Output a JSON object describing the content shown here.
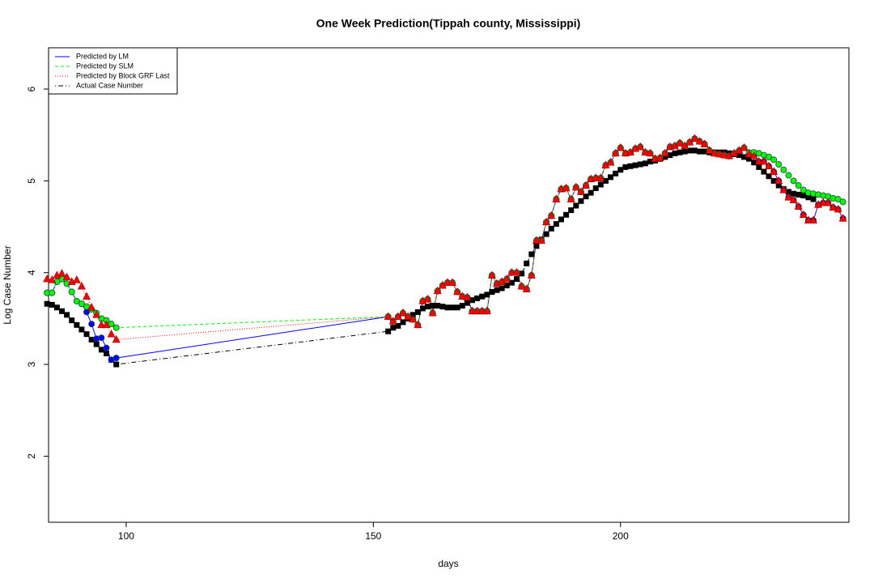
{
  "chart_data": {
    "type": "line",
    "title": "One Week Prediction(Tippah county, Mississippi)",
    "x_label": "days",
    "y_label": "Log Case Number",
    "xlim": [
      84.3,
      246.2
    ],
    "ylim": [
      1.28,
      6.45
    ],
    "xticks": [
      100,
      150,
      200
    ],
    "yticks": [
      2,
      3,
      4,
      5,
      6
    ],
    "legend": "topleft",
    "x": [
      84,
      85,
      86,
      87,
      88,
      89,
      90,
      91,
      92,
      93,
      94,
      95,
      96,
      97,
      98,
      153,
      154,
      155,
      156,
      157,
      158,
      159,
      160,
      161,
      162,
      163,
      164,
      165,
      166,
      167,
      168,
      169,
      170,
      171,
      172,
      173,
      174,
      175,
      176,
      177,
      178,
      179,
      180,
      181,
      182,
      183,
      184,
      185,
      186,
      187,
      188,
      189,
      190,
      191,
      192,
      193,
      194,
      195,
      196,
      197,
      198,
      199,
      200,
      201,
      202,
      203,
      204,
      205,
      206,
      207,
      208,
      209,
      210,
      211,
      212,
      213,
      214,
      215,
      216,
      217,
      218,
      219,
      220,
      221,
      222,
      223,
      224,
      225,
      226,
      227,
      228,
      229,
      230,
      231,
      232,
      233,
      234,
      235,
      236,
      237,
      238,
      239,
      240,
      241,
      242,
      243,
      244,
      245
    ],
    "series": [
      {
        "name": "Predicted by LM",
        "color": "#0000ff",
        "line_style": "solid",
        "marker": "circle",
        "values": [
          3.78,
          3.78,
          3.9,
          3.93,
          3.88,
          3.79,
          3.69,
          3.66,
          3.57,
          3.44,
          3.28,
          3.29,
          3.18,
          3.05,
          3.07,
          3.52,
          3.47,
          3.52,
          3.56,
          3.52,
          3.49,
          3.43,
          3.69,
          3.71,
          3.56,
          3.8,
          3.86,
          3.89,
          3.89,
          3.79,
          3.74,
          3.73,
          3.58,
          3.58,
          3.58,
          3.58,
          3.97,
          3.88,
          3.9,
          3.93,
          4.0,
          4.0,
          3.85,
          3.82,
          3.97,
          4.35,
          4.35,
          4.55,
          4.62,
          4.8,
          4.91,
          4.92,
          4.8,
          4.93,
          4.88,
          4.95,
          5.02,
          5.03,
          5.03,
          5.17,
          5.2,
          5.3,
          5.36,
          5.3,
          5.31,
          5.35,
          5.37,
          5.31,
          5.3,
          5.24,
          5.25,
          5.3,
          5.37,
          5.38,
          5.41,
          5.38,
          5.42,
          5.46,
          5.43,
          5.4,
          5.33,
          5.3,
          5.29,
          5.28,
          5.27,
          5.3,
          5.33,
          5.36,
          5.29,
          5.27,
          5.21,
          5.21,
          5.16,
          5.1,
          5.0,
          4.9,
          4.82,
          4.79,
          4.72,
          4.63,
          4.57,
          4.57,
          4.74,
          4.76,
          4.76,
          4.71,
          4.69,
          4.59
        ]
      },
      {
        "name": "Predicted by SLM",
        "color": "#00ff00",
        "line_style": "dashed",
        "marker": "circle",
        "values": [
          3.78,
          3.78,
          3.9,
          3.93,
          3.88,
          3.79,
          3.69,
          3.66,
          3.63,
          3.6,
          3.56,
          3.5,
          3.48,
          3.44,
          3.4,
          3.52,
          3.47,
          3.52,
          3.56,
          3.52,
          3.49,
          3.43,
          3.69,
          3.71,
          3.56,
          3.8,
          3.86,
          3.89,
          3.89,
          3.79,
          3.74,
          3.73,
          3.58,
          3.58,
          3.58,
          3.58,
          3.97,
          3.88,
          3.9,
          3.93,
          4.0,
          4.0,
          3.85,
          3.82,
          3.97,
          4.35,
          4.35,
          4.55,
          4.62,
          4.8,
          4.91,
          4.92,
          4.8,
          4.93,
          4.88,
          4.95,
          5.02,
          5.03,
          5.03,
          5.17,
          5.2,
          5.3,
          5.36,
          5.3,
          5.31,
          5.35,
          5.37,
          5.31,
          5.3,
          5.24,
          5.25,
          5.3,
          5.37,
          5.38,
          5.41,
          5.38,
          5.42,
          5.46,
          5.43,
          5.4,
          5.33,
          5.3,
          5.29,
          5.28,
          5.27,
          5.3,
          5.33,
          5.36,
          5.31,
          5.31,
          5.3,
          5.28,
          5.26,
          5.23,
          5.18,
          5.12,
          5.06,
          5.0,
          4.95,
          4.9,
          4.87,
          4.86,
          4.85,
          4.84,
          4.83,
          4.81,
          4.8,
          4.77
        ]
      },
      {
        "name": "Predicted by Block GRF Last",
        "color": "#ff0000",
        "line_style": "dotted",
        "marker": "triangle",
        "values": [
          3.93,
          3.92,
          3.97,
          3.99,
          3.95,
          3.9,
          3.92,
          3.85,
          3.74,
          3.62,
          3.54,
          3.43,
          3.43,
          3.33,
          3.27,
          3.52,
          3.47,
          3.52,
          3.56,
          3.52,
          3.49,
          3.43,
          3.69,
          3.71,
          3.56,
          3.8,
          3.86,
          3.89,
          3.89,
          3.79,
          3.74,
          3.73,
          3.58,
          3.58,
          3.58,
          3.58,
          3.97,
          3.88,
          3.9,
          3.93,
          4.0,
          4.0,
          3.85,
          3.82,
          3.97,
          4.35,
          4.35,
          4.55,
          4.62,
          4.8,
          4.91,
          4.92,
          4.8,
          4.93,
          4.88,
          4.95,
          5.02,
          5.03,
          5.03,
          5.17,
          5.2,
          5.3,
          5.36,
          5.3,
          5.31,
          5.35,
          5.37,
          5.31,
          5.3,
          5.24,
          5.25,
          5.3,
          5.37,
          5.38,
          5.41,
          5.38,
          5.42,
          5.46,
          5.43,
          5.4,
          5.33,
          5.3,
          5.29,
          5.28,
          5.27,
          5.3,
          5.33,
          5.36,
          5.29,
          5.27,
          5.21,
          5.21,
          5.16,
          5.1,
          5.0,
          4.9,
          4.82,
          4.79,
          4.72,
          4.63,
          4.57,
          4.57,
          4.74,
          4.76,
          4.76,
          4.71,
          4.69,
          4.59
        ]
      },
      {
        "name": "Actual Case Number",
        "color": "#000000",
        "line_style": "dotdash",
        "marker": "square",
        "values": [
          3.66,
          3.65,
          3.62,
          3.58,
          3.54,
          3.48,
          3.43,
          3.38,
          3.33,
          3.27,
          3.22,
          3.16,
          3.12,
          3.05,
          3.0,
          3.36,
          3.4,
          3.42,
          3.46,
          3.5,
          3.54,
          3.57,
          3.61,
          3.63,
          3.64,
          3.64,
          3.63,
          3.62,
          3.62,
          3.62,
          3.64,
          3.67,
          3.7,
          3.72,
          3.74,
          3.76,
          3.79,
          3.81,
          3.83,
          3.86,
          3.89,
          3.93,
          3.99,
          4.1,
          4.2,
          4.29,
          4.36,
          4.42,
          4.48,
          4.53,
          4.58,
          4.63,
          4.68,
          4.73,
          4.78,
          4.83,
          4.87,
          4.92,
          4.96,
          5.0,
          5.04,
          5.08,
          5.12,
          5.15,
          5.16,
          5.17,
          5.18,
          5.19,
          5.21,
          5.22,
          5.24,
          5.26,
          5.28,
          5.3,
          5.31,
          5.32,
          5.33,
          5.33,
          5.32,
          5.32,
          5.31,
          5.31,
          5.31,
          5.31,
          5.3,
          5.29,
          5.28,
          5.26,
          5.24,
          5.2,
          5.15,
          5.1,
          5.05,
          5.0,
          4.95,
          4.91,
          4.88,
          4.86,
          4.85,
          4.84,
          4.82,
          4.8,
          null,
          null,
          null,
          null,
          null,
          null
        ]
      }
    ]
  }
}
